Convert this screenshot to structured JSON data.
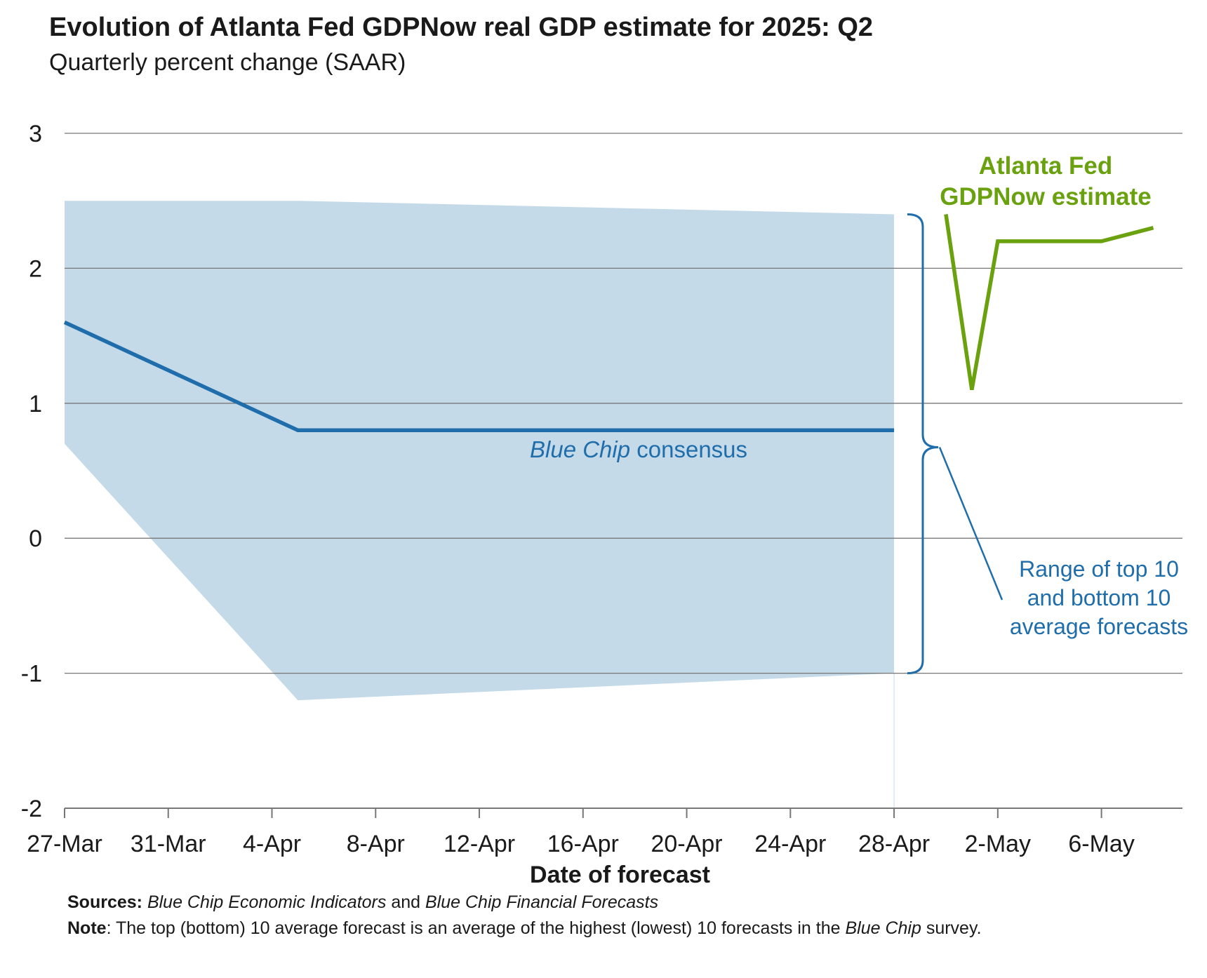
{
  "title": "Evolution of Atlanta Fed GDPNow real GDP estimate for 2025: Q2",
  "subtitle": "Quarterly percent change (SAAR)",
  "footer": {
    "sources_label": "Sources:",
    "sources_text_1": "Blue Chip Economic Indicators",
    "sources_and": " and ",
    "sources_text_2": "Blue Chip Financial Forecasts",
    "note_label": "Note",
    "note_text": ": The top (bottom) 10 average forecast is an average of the highest (lowest) 10 forecasts in the ",
    "note_italic": "Blue Chip",
    "note_end": " survey."
  },
  "chart_data": {
    "type": "line",
    "xlabel": "Date of forecast",
    "ylabel": "",
    "ylim": [
      -2,
      3
    ],
    "yticks": [
      3,
      2,
      1,
      0,
      -1,
      -2
    ],
    "ytick_labels": [
      "3",
      "2",
      "1",
      "0",
      "-1",
      "-2"
    ],
    "x_tick_labels": [
      "27-Mar",
      "31-Mar",
      "4-Apr",
      "8-Apr",
      "12-Apr",
      "16-Apr",
      "20-Apr",
      "24-Apr",
      "28-Apr",
      "2-May",
      "6-May"
    ],
    "x_tick_dates": [
      "2025-03-27",
      "2025-03-31",
      "2025-04-04",
      "2025-04-08",
      "2025-04-12",
      "2025-04-16",
      "2025-04-20",
      "2025-04-24",
      "2025-04-28",
      "2025-05-02",
      "2025-05-06"
    ],
    "grid": true,
    "series": [
      {
        "name": "Blue Chip consensus",
        "color": "#1f6eab",
        "x": [
          "2025-03-27",
          "2025-04-05",
          "2025-04-28"
        ],
        "y": [
          1.6,
          0.8,
          0.8
        ]
      },
      {
        "name": "Atlanta Fed GDPNow estimate",
        "color": "#6aa10f",
        "x": [
          "2025-04-30",
          "2025-05-01",
          "2025-05-02",
          "2025-05-06",
          "2025-05-08"
        ],
        "y": [
          2.4,
          1.1,
          2.2,
          2.2,
          2.3
        ]
      }
    ],
    "range_band": {
      "name": "Range of top 10 and bottom 10 average forecasts",
      "color": "#c5dae9",
      "x": [
        "2025-03-27",
        "2025-04-05",
        "2025-04-28"
      ],
      "upper": [
        2.5,
        2.5,
        2.4
      ],
      "lower": [
        0.7,
        -1.2,
        -1.0
      ]
    },
    "annotations": {
      "blue_chip": {
        "italic": "Blue Chip",
        "rest": " consensus"
      },
      "gdpnow_line1": "Atlanta Fed",
      "gdpnow_line2": "GDPNow estimate",
      "range_line1": "Range of top 10",
      "range_line2": "and bottom 10",
      "range_line3": "average forecasts"
    },
    "colors": {
      "grid": "#777777",
      "axis_text": "#1a1a1a",
      "green": "#6aa10f",
      "blue": "#1f6eab",
      "band": "#c5dae9"
    }
  }
}
